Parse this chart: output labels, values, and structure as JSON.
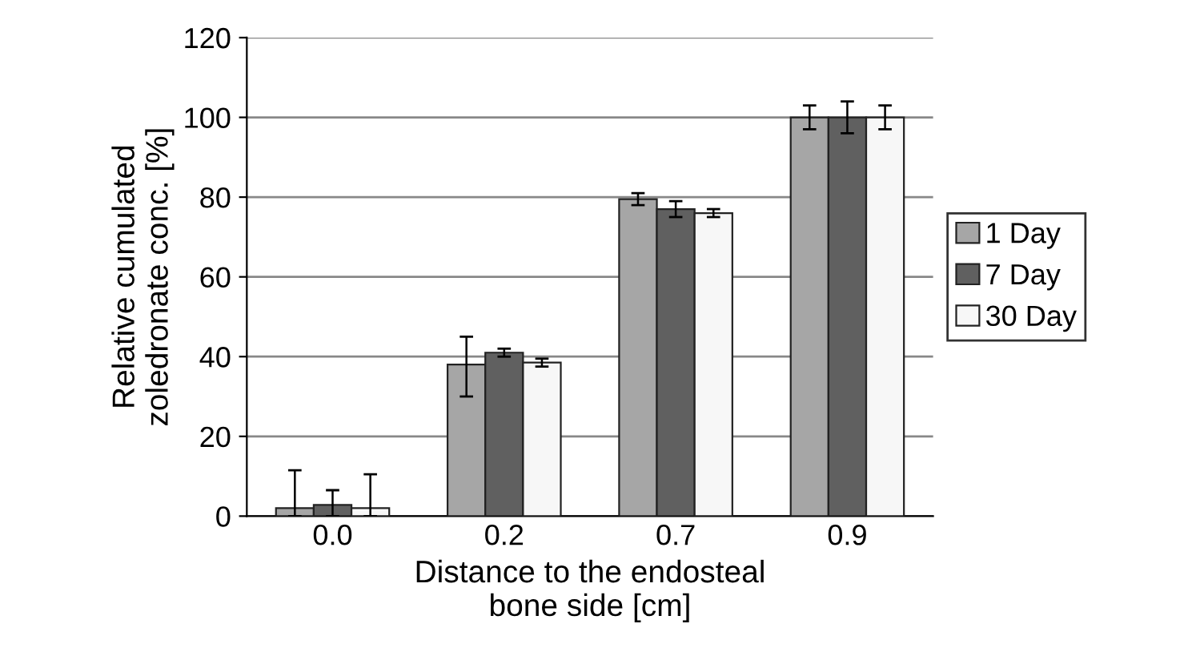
{
  "chart_data": {
    "type": "bar",
    "xlabel": "Distance to the endosteal\nbone side [cm]",
    "ylabel": "Relative cumulated\nzoledronate conc. [%]",
    "categories": [
      "0.0",
      "0.2",
      "0.7",
      "0.9"
    ],
    "series": [
      {
        "name": "1 Day",
        "color": "#a6a6a6",
        "values": [
          2,
          38,
          79.5,
          100
        ],
        "errors": [
          [
            0,
            11.5
          ],
          [
            30,
            45
          ],
          [
            78,
            81
          ],
          [
            97,
            103
          ]
        ]
      },
      {
        "name": "7 Day",
        "color": "#606060",
        "values": [
          2.8,
          41,
          77,
          100
        ],
        "errors": [
          [
            0,
            6.5
          ],
          [
            40,
            42
          ],
          [
            75,
            79
          ],
          [
            96,
            104
          ]
        ]
      },
      {
        "name": "30 Day",
        "color": "#f7f7f7",
        "values": [
          2,
          38.5,
          76,
          100
        ],
        "errors": [
          [
            0,
            10.5
          ],
          [
            37.5,
            39.5
          ],
          [
            75,
            77
          ],
          [
            97,
            103
          ]
        ]
      }
    ],
    "ylim": [
      0,
      120
    ],
    "yticks": [
      0,
      20,
      40,
      60,
      80,
      100,
      120
    ],
    "grid": "y",
    "legend": "right"
  }
}
